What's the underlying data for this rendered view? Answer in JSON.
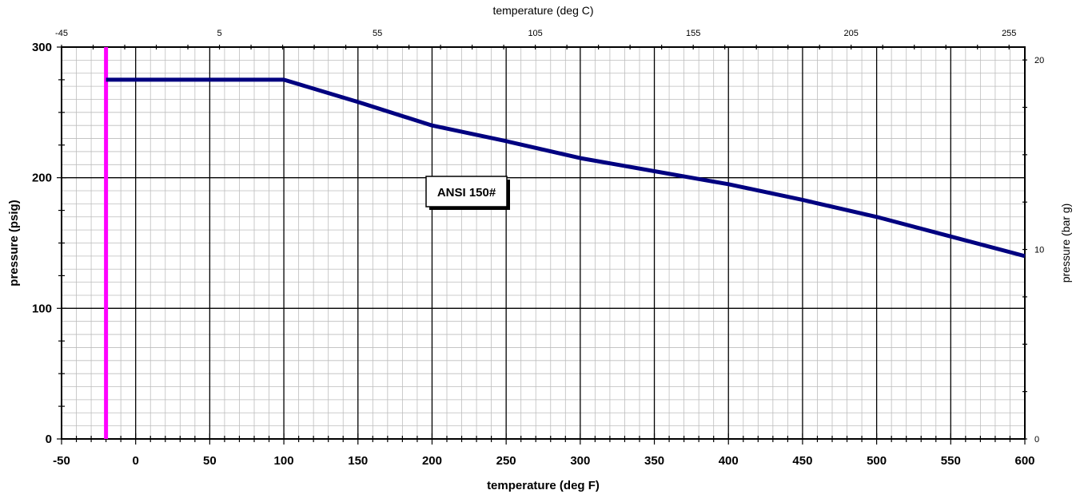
{
  "chart_data": {
    "type": "line",
    "title": "",
    "xlabel": "temperature (deg F)",
    "ylabel": "pressure (psig)",
    "x2label": "temperature (deg C)",
    "y2label": "pressure (bar g)",
    "xlim": [
      -50,
      600
    ],
    "ylim": [
      0,
      300
    ],
    "x2lim": [
      -45,
      260
    ],
    "y2lim": [
      0,
      20.68
    ],
    "x_ticks": [
      "-50",
      "0",
      "50",
      "100",
      "150",
      "200",
      "250",
      "300",
      "350",
      "400",
      "450",
      "500",
      "550",
      "600"
    ],
    "y_ticks": [
      "0",
      "100",
      "200",
      "300"
    ],
    "x2_ticks": [
      "-45",
      "5",
      "55",
      "105",
      "155",
      "205",
      "255"
    ],
    "y2_ticks": [
      "0",
      "10",
      "20"
    ],
    "grid": true,
    "annotation": "ANSI 150#",
    "series": [
      {
        "color": "#000080",
        "x": [
          -20,
          100,
          150,
          200,
          250,
          300,
          350,
          400,
          450,
          500,
          550,
          600
        ],
        "y": [
          275,
          275,
          258,
          240,
          228,
          215,
          205,
          195,
          183,
          170,
          155,
          140
        ]
      }
    ],
    "vline": {
      "x": -20,
      "color": "#ff00ff"
    }
  }
}
